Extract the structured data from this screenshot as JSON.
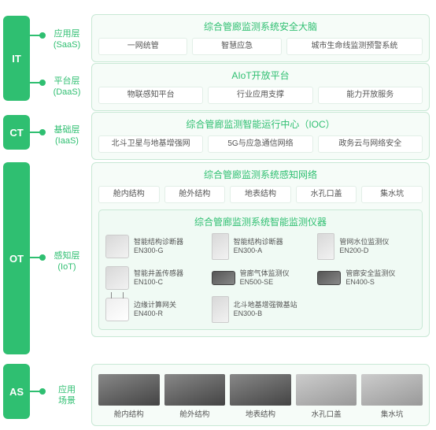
{
  "colors": {
    "accent": "#2fbf71",
    "badge_it": "#2fbf71",
    "badge_ct": "#2fbf71",
    "badge_ot": "#2fbf71",
    "badge_as": "#2fbf71",
    "panel_bg": "#f6fcf8",
    "panel_border": "#c8e8d5",
    "chip_bg": "#ffffff",
    "chip_border": "#e2efe7",
    "text_muted": "#555555"
  },
  "badges": {
    "it": "IT",
    "ct": "CT",
    "ot": "OT",
    "as": "AS"
  },
  "sublabels": {
    "saas_l1": "应用层",
    "saas_l2": "(SaaS)",
    "daas_l1": "平台层",
    "daas_l2": "(DaaS)",
    "iaas_l1": "基础层",
    "iaas_l2": "(IaaS)",
    "iot_l1": "感知层",
    "iot_l2": "(IoT)",
    "as_l1": "应用",
    "as_l2": "场景"
  },
  "panels": {
    "saas": {
      "title": "综合管廊监测系统安全大脑",
      "chips": [
        "一网统管",
        "智慧应急",
        "城市生命线监测预警系统"
      ]
    },
    "daas": {
      "title": "AIoT开放平台",
      "chips": [
        "物联感知平台",
        "行业应用支撑",
        "能力开放服务"
      ]
    },
    "iaas": {
      "title": "综合管廊监测智能运行中心（IOC）",
      "chips": [
        "北斗卫星与地基增强网",
        "5G与应急通信网络",
        "政务云与网络安全"
      ]
    },
    "iot": {
      "title": "综合管廊监测系统感知网络",
      "chips": [
        "舱内结构",
        "舱外结构",
        "地表结构",
        "水孔口盖",
        "集水坑"
      ],
      "inner_title": "综合管廊监测系统智能监测仪器",
      "devices": [
        {
          "name": "智能结构诊断器",
          "model": "EN300-G",
          "shape": "box"
        },
        {
          "name": "智能结构诊断器",
          "model": "EN300-A",
          "shape": "tall"
        },
        {
          "name": "管网水位监测仪",
          "model": "EN200-D",
          "shape": "tall"
        },
        {
          "name": "智能井盖传感器",
          "model": "EN100-C",
          "shape": "box"
        },
        {
          "name": "管廊气体监测仪",
          "model": "EN500-SE",
          "shape": "flat"
        },
        {
          "name": "管廊安全监测仪",
          "model": "EN400-S",
          "shape": "flat"
        },
        {
          "name": "边缘计算网关",
          "model": "EN400-R",
          "shape": "router"
        },
        {
          "name": "北斗地基增强微基站",
          "model": "EN300-B",
          "shape": "tall"
        }
      ]
    },
    "as": {
      "scenes": [
        {
          "label": "舱内结构",
          "tone": "dark"
        },
        {
          "label": "舱外结构",
          "tone": "dark"
        },
        {
          "label": "地表结构",
          "tone": "dark"
        },
        {
          "label": "水孔口盖",
          "tone": "light"
        },
        {
          "label": "集水坑",
          "tone": "light"
        }
      ]
    }
  }
}
